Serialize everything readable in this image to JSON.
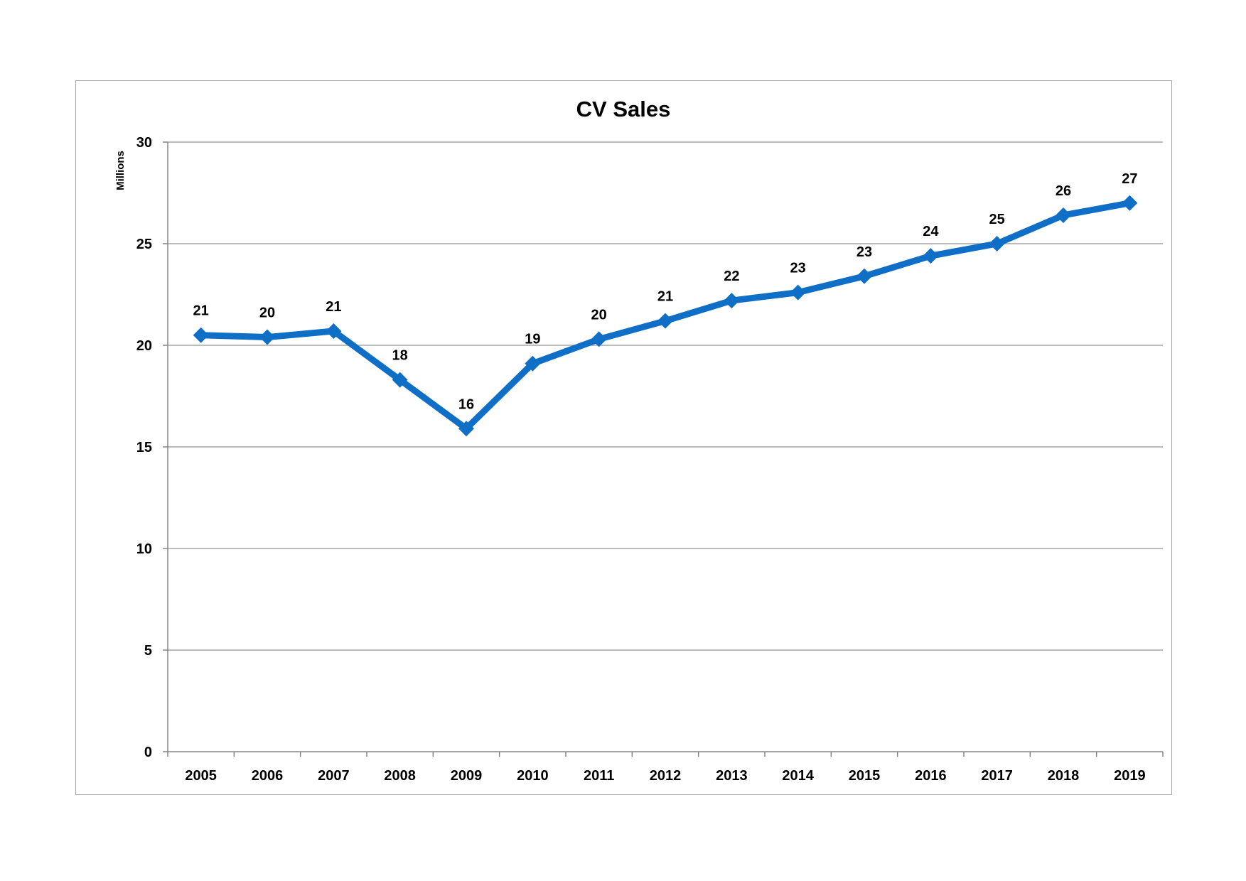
{
  "chart_data": {
    "type": "line",
    "title": "CV Sales",
    "xlabel": "",
    "ylabel": "Millions",
    "ylim": [
      0,
      30
    ],
    "yticks": [
      "0",
      "5",
      "10",
      "15",
      "20",
      "25",
      "30"
    ],
    "categories": [
      "2005",
      "2006",
      "2007",
      "2008",
      "2009",
      "2010",
      "2011",
      "2012",
      "2013",
      "2014",
      "2015",
      "2016",
      "2017",
      "2018",
      "2019"
    ],
    "series": [
      {
        "values": [
          20.5,
          20.4,
          20.7,
          18.3,
          15.9,
          19.1,
          20.3,
          21.2,
          22.2,
          22.6,
          23.4,
          24.4,
          25.0,
          26.4,
          27.0
        ],
        "labels": [
          "21",
          "20",
          "21",
          "18",
          "16",
          "19",
          "20",
          "21",
          "22",
          "23",
          "23",
          "24",
          "25",
          "26",
          "27"
        ],
        "color": "#0f6fc6"
      }
    ],
    "grid": true,
    "legend": "none"
  }
}
